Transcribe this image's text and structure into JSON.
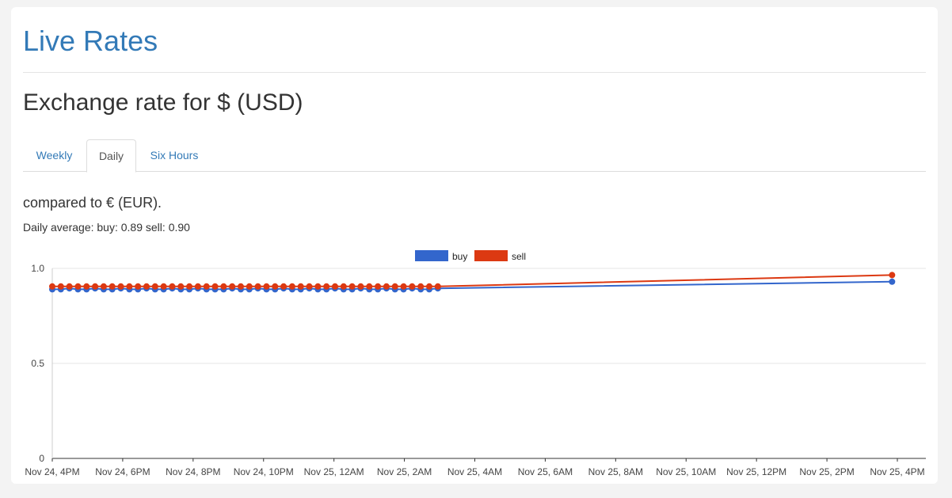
{
  "page": {
    "title": "Live Rates",
    "subtitle": "Exchange rate for $ (USD)",
    "tabs": [
      {
        "label": "Weekly",
        "active": false
      },
      {
        "label": "Daily",
        "active": true
      },
      {
        "label": "Six Hours",
        "active": false
      }
    ],
    "compared": "compared to € (EUR).",
    "average": {
      "prefix": "Daily average:",
      "buy_label": "buy:",
      "buy_value": "0.89",
      "sell_label": "sell:",
      "sell_value": "0.90"
    }
  },
  "colors": {
    "buy": "#3366cc",
    "sell": "#dc3912",
    "link": "#337ab7",
    "grid": "#e6e6e6"
  },
  "chart_data": {
    "type": "line",
    "xlabel": "",
    "ylabel": "",
    "ylim": [
      0,
      1.0
    ],
    "yticks": [
      "0",
      "0.5",
      "1.0"
    ],
    "xticks": [
      "Nov 24, 4PM",
      "Nov 24, 6PM",
      "Nov 24, 8PM",
      "Nov 24, 10PM",
      "Nov 25, 12AM",
      "Nov 25, 2AM",
      "Nov 25, 4AM",
      "Nov 25, 6AM",
      "Nov 25, 8AM",
      "Nov 25, 10AM",
      "Nov 25, 12PM",
      "Nov 25, 2PM",
      "Nov 25, 4PM"
    ],
    "legend_position": "top",
    "grid": true,
    "x_start": "Nov 24, 4PM",
    "x_step_hours": 0.25,
    "x_extra_point_hours": 23.85,
    "series": [
      {
        "name": "buy",
        "values": [
          0.89,
          0.89,
          0.895,
          0.89,
          0.89,
          0.895,
          0.89,
          0.89,
          0.895,
          0.89,
          0.89,
          0.895,
          0.89,
          0.89,
          0.895,
          0.89,
          0.89,
          0.895,
          0.89,
          0.89,
          0.89,
          0.895,
          0.89,
          0.89,
          0.895,
          0.89,
          0.89,
          0.895,
          0.89,
          0.89,
          0.895,
          0.89,
          0.89,
          0.895,
          0.89,
          0.89,
          0.895,
          0.89,
          0.89,
          0.895,
          0.89,
          0.89,
          0.895,
          0.89,
          0.89,
          0.895,
          0.93
        ]
      },
      {
        "name": "sell",
        "values": [
          0.905,
          0.905,
          0.905,
          0.905,
          0.905,
          0.905,
          0.905,
          0.905,
          0.905,
          0.905,
          0.905,
          0.905,
          0.905,
          0.905,
          0.905,
          0.905,
          0.905,
          0.905,
          0.905,
          0.905,
          0.905,
          0.905,
          0.905,
          0.905,
          0.905,
          0.905,
          0.905,
          0.905,
          0.905,
          0.905,
          0.905,
          0.905,
          0.905,
          0.905,
          0.905,
          0.905,
          0.905,
          0.905,
          0.905,
          0.905,
          0.905,
          0.905,
          0.905,
          0.905,
          0.905,
          0.905,
          0.965
        ]
      }
    ]
  }
}
